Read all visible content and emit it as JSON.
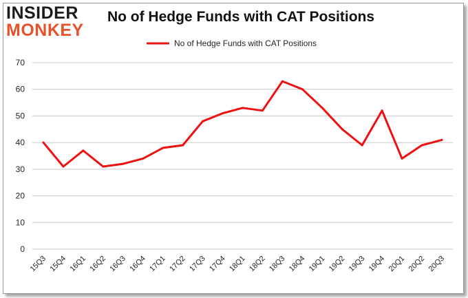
{
  "logo": {
    "line1": "INSIDER",
    "line2": "MONKEY"
  },
  "colors": {
    "line": "#ee1111",
    "grid": "#c8c8c8",
    "axis_text": "#222222",
    "logo_dark": "#1b1b1b",
    "logo_accent": "#e8522b"
  },
  "chart_data": {
    "type": "line",
    "title": "No of Hedge Funds with CAT Positions",
    "categories": [
      "15Q3",
      "15Q4",
      "16Q1",
      "16Q2",
      "16Q3",
      "16Q4",
      "17Q1",
      "17Q2",
      "17Q3",
      "17Q4",
      "18Q1",
      "18Q2",
      "18Q3",
      "18Q4",
      "19Q1",
      "19Q2",
      "19Q3",
      "19Q4",
      "20Q1",
      "20Q2",
      "20Q3"
    ],
    "series": [
      {
        "name": "No of Hedge Funds with CAT Positions",
        "values": [
          40,
          31,
          37,
          31,
          32,
          34,
          38,
          39,
          48,
          51,
          53,
          52,
          63,
          60,
          53,
          45,
          39,
          52,
          34,
          39,
          41
        ]
      }
    ],
    "xlabel": "",
    "ylabel": "",
    "ylim": [
      0,
      70
    ],
    "yticks": [
      0,
      10,
      20,
      30,
      40,
      50,
      60,
      70
    ],
    "grid": true,
    "legend_position": "top-center"
  }
}
